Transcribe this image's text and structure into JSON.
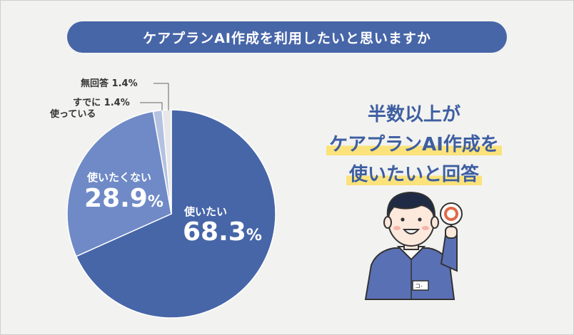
{
  "title": "ケアプランAI作成を利用したいと思いますか",
  "headline": {
    "line1": "半数以上が",
    "line2": "ケアプランAI作成を",
    "line3": "使いたいと回答"
  },
  "chart_data": {
    "type": "pie",
    "slices": [
      {
        "label": "使いたい",
        "value": 68.3,
        "value_text": "68.3%",
        "color": "#4766a8"
      },
      {
        "label": "使いたくない",
        "value": 28.9,
        "value_text": "28.9%",
        "color": "#6f8ac6"
      },
      {
        "label": "すでに使っている",
        "value": 1.4,
        "value_text": "1.4%",
        "color": "#b5c1e0"
      },
      {
        "label": "無回答",
        "value": 1.4,
        "value_text": "1.4%",
        "color": "#e8e8e8"
      }
    ]
  },
  "labels": {
    "use_label": "使いたい",
    "use_value_main": "68.3",
    "use_value_pct": "%",
    "nouse_label": "使いたくない",
    "nouse_value_main": "28.9",
    "nouse_value_pct": "%",
    "already_line1": "すでに",
    "already_value": "1.4%",
    "already_line2": "使っている",
    "noanswer_text": "無回答",
    "noanswer_value": "1.4%"
  },
  "illustration": {
    "badge_text": "コ-"
  }
}
